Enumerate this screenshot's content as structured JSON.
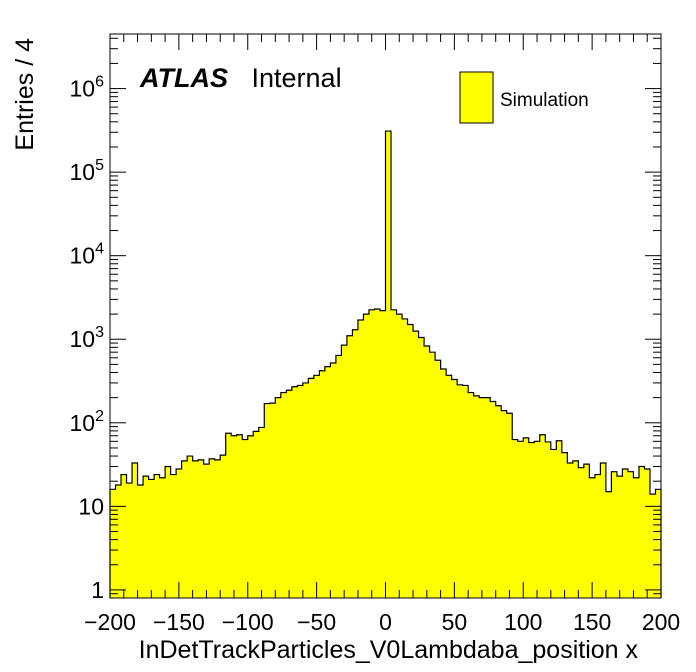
{
  "chart_data": {
    "type": "bar",
    "style": "histogram",
    "xlabel": "InDetTrackParticles_V0Lambdaba_position x",
    "ylabel": "Entries / 4",
    "xlim": [
      -200,
      200
    ],
    "ylim": [
      0.8,
      4500000
    ],
    "yscale": "log",
    "bin_width": 4,
    "x_ticks": [
      "−200",
      "−150",
      "−100",
      "−50",
      "0",
      "50",
      "100",
      "150",
      "200"
    ],
    "y_ticks": [
      {
        "base": "1",
        "exp": ""
      },
      {
        "base": "10",
        "exp": ""
      },
      {
        "base": "10",
        "exp": "2"
      },
      {
        "base": "10",
        "exp": "3"
      },
      {
        "base": "10",
        "exp": "4"
      },
      {
        "base": "10",
        "exp": "5"
      },
      {
        "base": "10",
        "exp": "6"
      }
    ],
    "fill_color": "#ffff00",
    "line_color": "#000000",
    "legend": {
      "position": "top-right",
      "entries": [
        "Simulation"
      ]
    },
    "atlas_label": {
      "bold_text": "ATLAS",
      "text": "Internal"
    },
    "series": [
      {
        "name": "Simulation",
        "x_left_edges": [
          -200,
          -196,
          -192,
          -188,
          -184,
          -180,
          -176,
          -172,
          -168,
          -164,
          -160,
          -156,
          -152,
          -148,
          -144,
          -140,
          -136,
          -132,
          -128,
          -124,
          -120,
          -116,
          -112,
          -108,
          -104,
          -100,
          -96,
          -92,
          -88,
          -84,
          -80,
          -76,
          -72,
          -68,
          -64,
          -60,
          -56,
          -52,
          -48,
          -44,
          -40,
          -36,
          -32,
          -28,
          -24,
          -20,
          -16,
          -12,
          -8,
          -4,
          0,
          4,
          8,
          12,
          16,
          20,
          24,
          28,
          32,
          36,
          40,
          44,
          48,
          52,
          56,
          60,
          64,
          68,
          72,
          76,
          80,
          84,
          88,
          92,
          96,
          100,
          104,
          108,
          112,
          116,
          120,
          124,
          128,
          132,
          136,
          140,
          144,
          148,
          152,
          156,
          160,
          164,
          168,
          172,
          176,
          180,
          184,
          188,
          192,
          196
        ],
        "values": [
          16,
          18,
          24,
          19,
          33,
          18,
          23,
          21,
          24,
          22,
          30,
          24,
          28,
          35,
          40,
          35,
          36,
          32,
          37,
          36,
          41,
          75,
          70,
          72,
          63,
          70,
          79,
          88,
          170,
          172,
          200,
          230,
          245,
          270,
          280,
          300,
          340,
          370,
          420,
          470,
          520,
          640,
          850,
          1100,
          1300,
          1700,
          2000,
          2250,
          2300,
          2200,
          310000,
          2250,
          2000,
          1750,
          1500,
          1250,
          1050,
          830,
          700,
          560,
          440,
          370,
          330,
          285,
          280,
          230,
          210,
          200,
          200,
          180,
          160,
          140,
          130,
          63,
          60,
          66,
          58,
          60,
          72,
          59,
          48,
          61,
          44,
          33,
          35,
          29,
          32,
          22,
          24,
          33,
          15,
          26,
          23,
          28,
          26,
          22,
          30,
          28,
          14,
          16
        ]
      }
    ]
  }
}
